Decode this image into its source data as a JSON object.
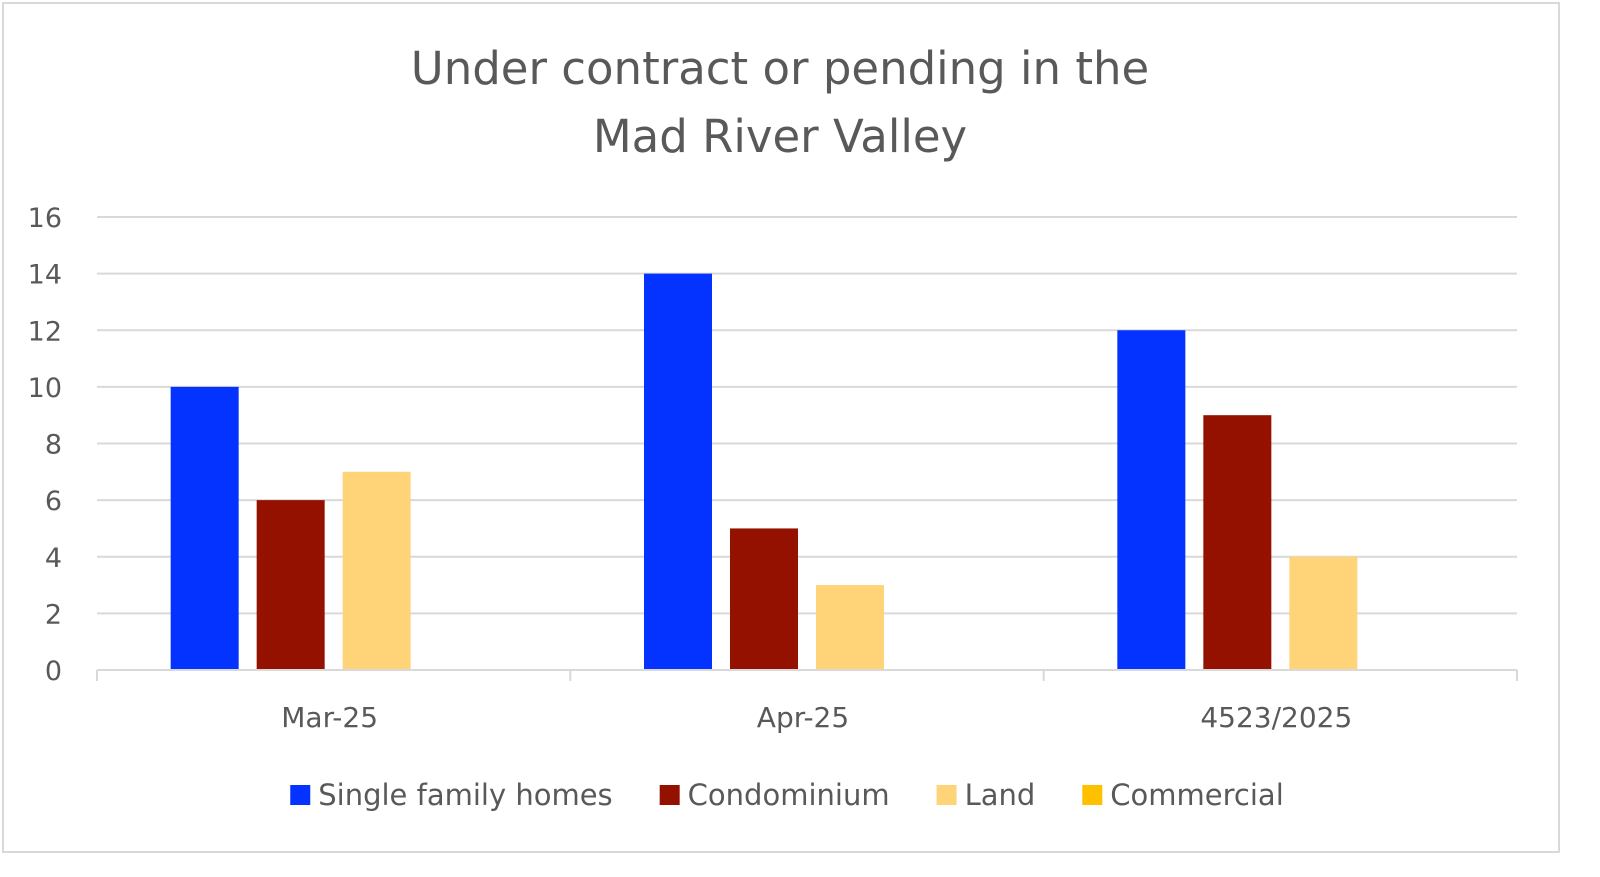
{
  "chart_data": {
    "type": "bar",
    "title": "Under contract or pending in the Mad River Valley",
    "title_lines": [
      "Under contract or pending in the",
      "Mad River Valley"
    ],
    "xlabel": "",
    "ylabel": "",
    "categories": [
      "Mar-25",
      "Apr-25",
      "4523/2025"
    ],
    "series": [
      {
        "name": "Single family homes",
        "color": "#0433FF",
        "values": [
          10,
          14,
          12
        ]
      },
      {
        "name": "Condominium",
        "color": "#941100",
        "values": [
          6,
          5,
          9
        ]
      },
      {
        "name": "Land",
        "color": "#FFD479",
        "values": [
          7,
          3,
          4
        ]
      },
      {
        "name": "Commercial",
        "color": "#FFC000",
        "values": [
          0,
          0,
          0
        ]
      }
    ],
    "ylim": [
      0,
      16
    ],
    "yticks": [
      0,
      2,
      4,
      6,
      8,
      10,
      12,
      14,
      16
    ],
    "grid": true,
    "legend": "bottom"
  }
}
